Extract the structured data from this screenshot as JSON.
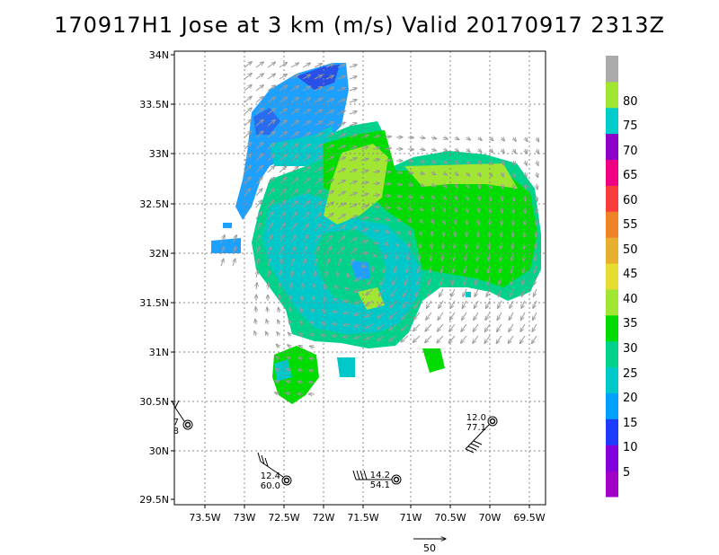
{
  "title": "170917H1 Jose at 3 km (m/s) Valid 20170917 2313Z",
  "lat_labels": [
    "34N",
    "33.5N",
    "33N",
    "32.5N",
    "32N",
    "31.5N",
    "31N",
    "30.5N",
    "30N",
    "29.5N"
  ],
  "lon_labels": [
    "73.5W",
    "73W",
    "72.5W",
    "72W",
    "71.5W",
    "71W",
    "70.5W",
    "70W",
    "69.5W"
  ],
  "colorbar": {
    "labels": [
      "5",
      "10",
      "15",
      "20",
      "25",
      "30",
      "35",
      "40",
      "45",
      "50",
      "55",
      "60",
      "65",
      "70",
      "75",
      "80"
    ],
    "colors": [
      "#a000c8",
      "#8200dc",
      "#1e3cff",
      "#00a0ff",
      "#00c8c8",
      "#00d28c",
      "#00dc00",
      "#a0e632",
      "#e6dc32",
      "#e6af2d",
      "#f08228",
      "#fa3c3c",
      "#f00082",
      "#8c00c8",
      "#00cccc",
      "#a0e632",
      "#aaaaaa"
    ]
  },
  "reference_vector_label": "50",
  "stations": [
    {
      "value_top": "7",
      "value_bottom": "8"
    },
    {
      "value_top": "12.4",
      "value_bottom": "60.0"
    },
    {
      "value_top": "14.2",
      "value_bottom": "54.1"
    },
    {
      "value_top": "12.0",
      "value_bottom": "77.1"
    }
  ]
}
